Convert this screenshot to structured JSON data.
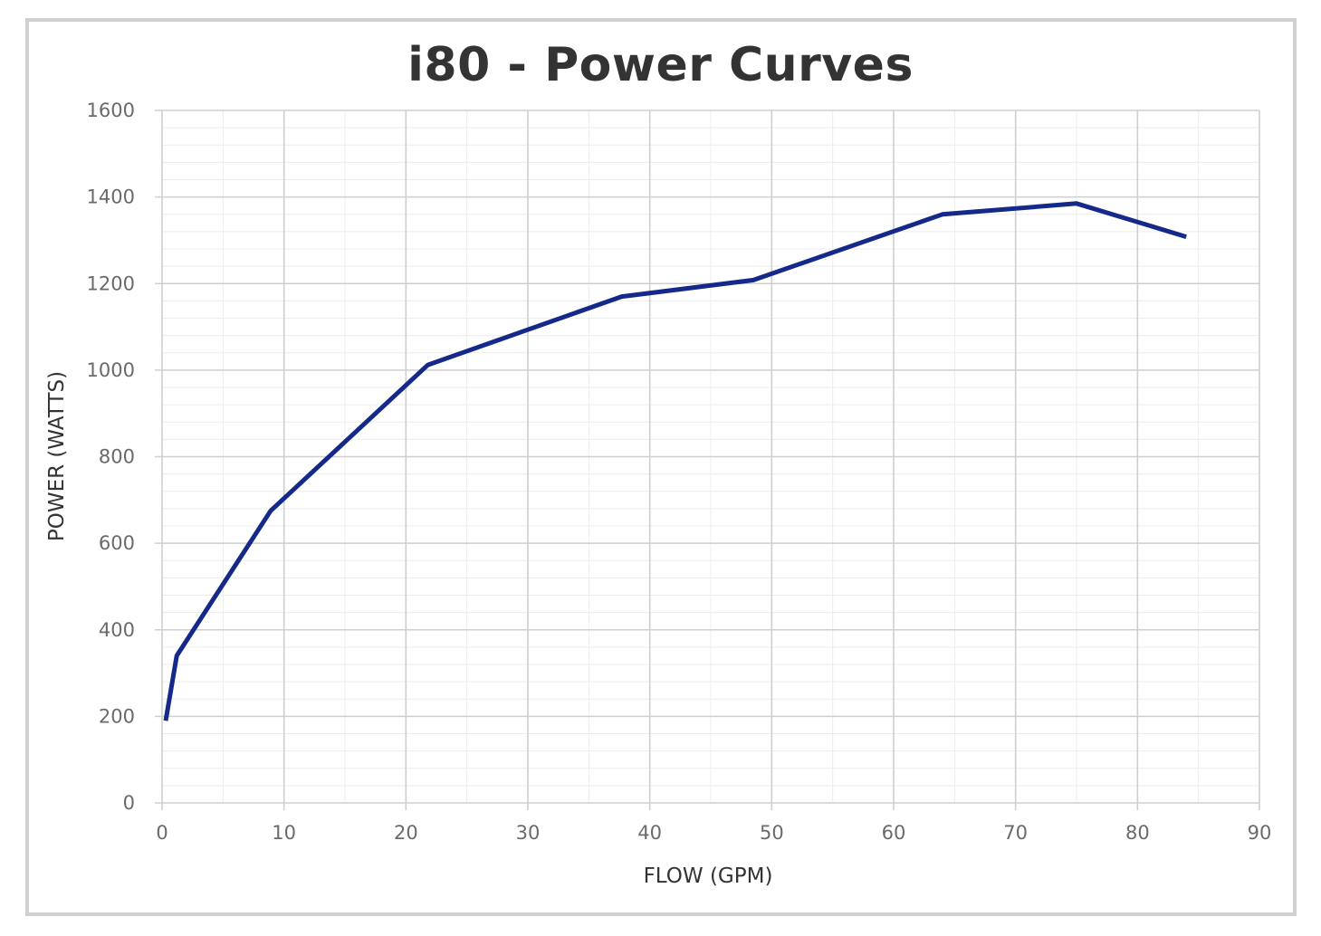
{
  "chart_data": {
    "type": "line",
    "title": "i80 - Power Curves",
    "xlabel": "FLOW (GPM)",
    "ylabel": "POWER (WATTS)",
    "xlim": [
      0,
      90
    ],
    "ylim": [
      0,
      1600
    ],
    "x_ticks": [
      0,
      10,
      20,
      30,
      40,
      50,
      60,
      70,
      80,
      90
    ],
    "y_ticks": [
      0,
      200,
      400,
      600,
      800,
      1000,
      1200,
      1400,
      1600
    ],
    "grid": true,
    "minor_grid": true,
    "legend": "none",
    "series": [
      {
        "color": "#14298a",
        "x": [
          0.3,
          1.2,
          8.9,
          21.8,
          37.7,
          48.5,
          64.0,
          75.0,
          84.0
        ],
        "y": [
          190,
          340,
          675,
          1012,
          1170,
          1208,
          1360,
          1385,
          1308
        ]
      }
    ]
  }
}
